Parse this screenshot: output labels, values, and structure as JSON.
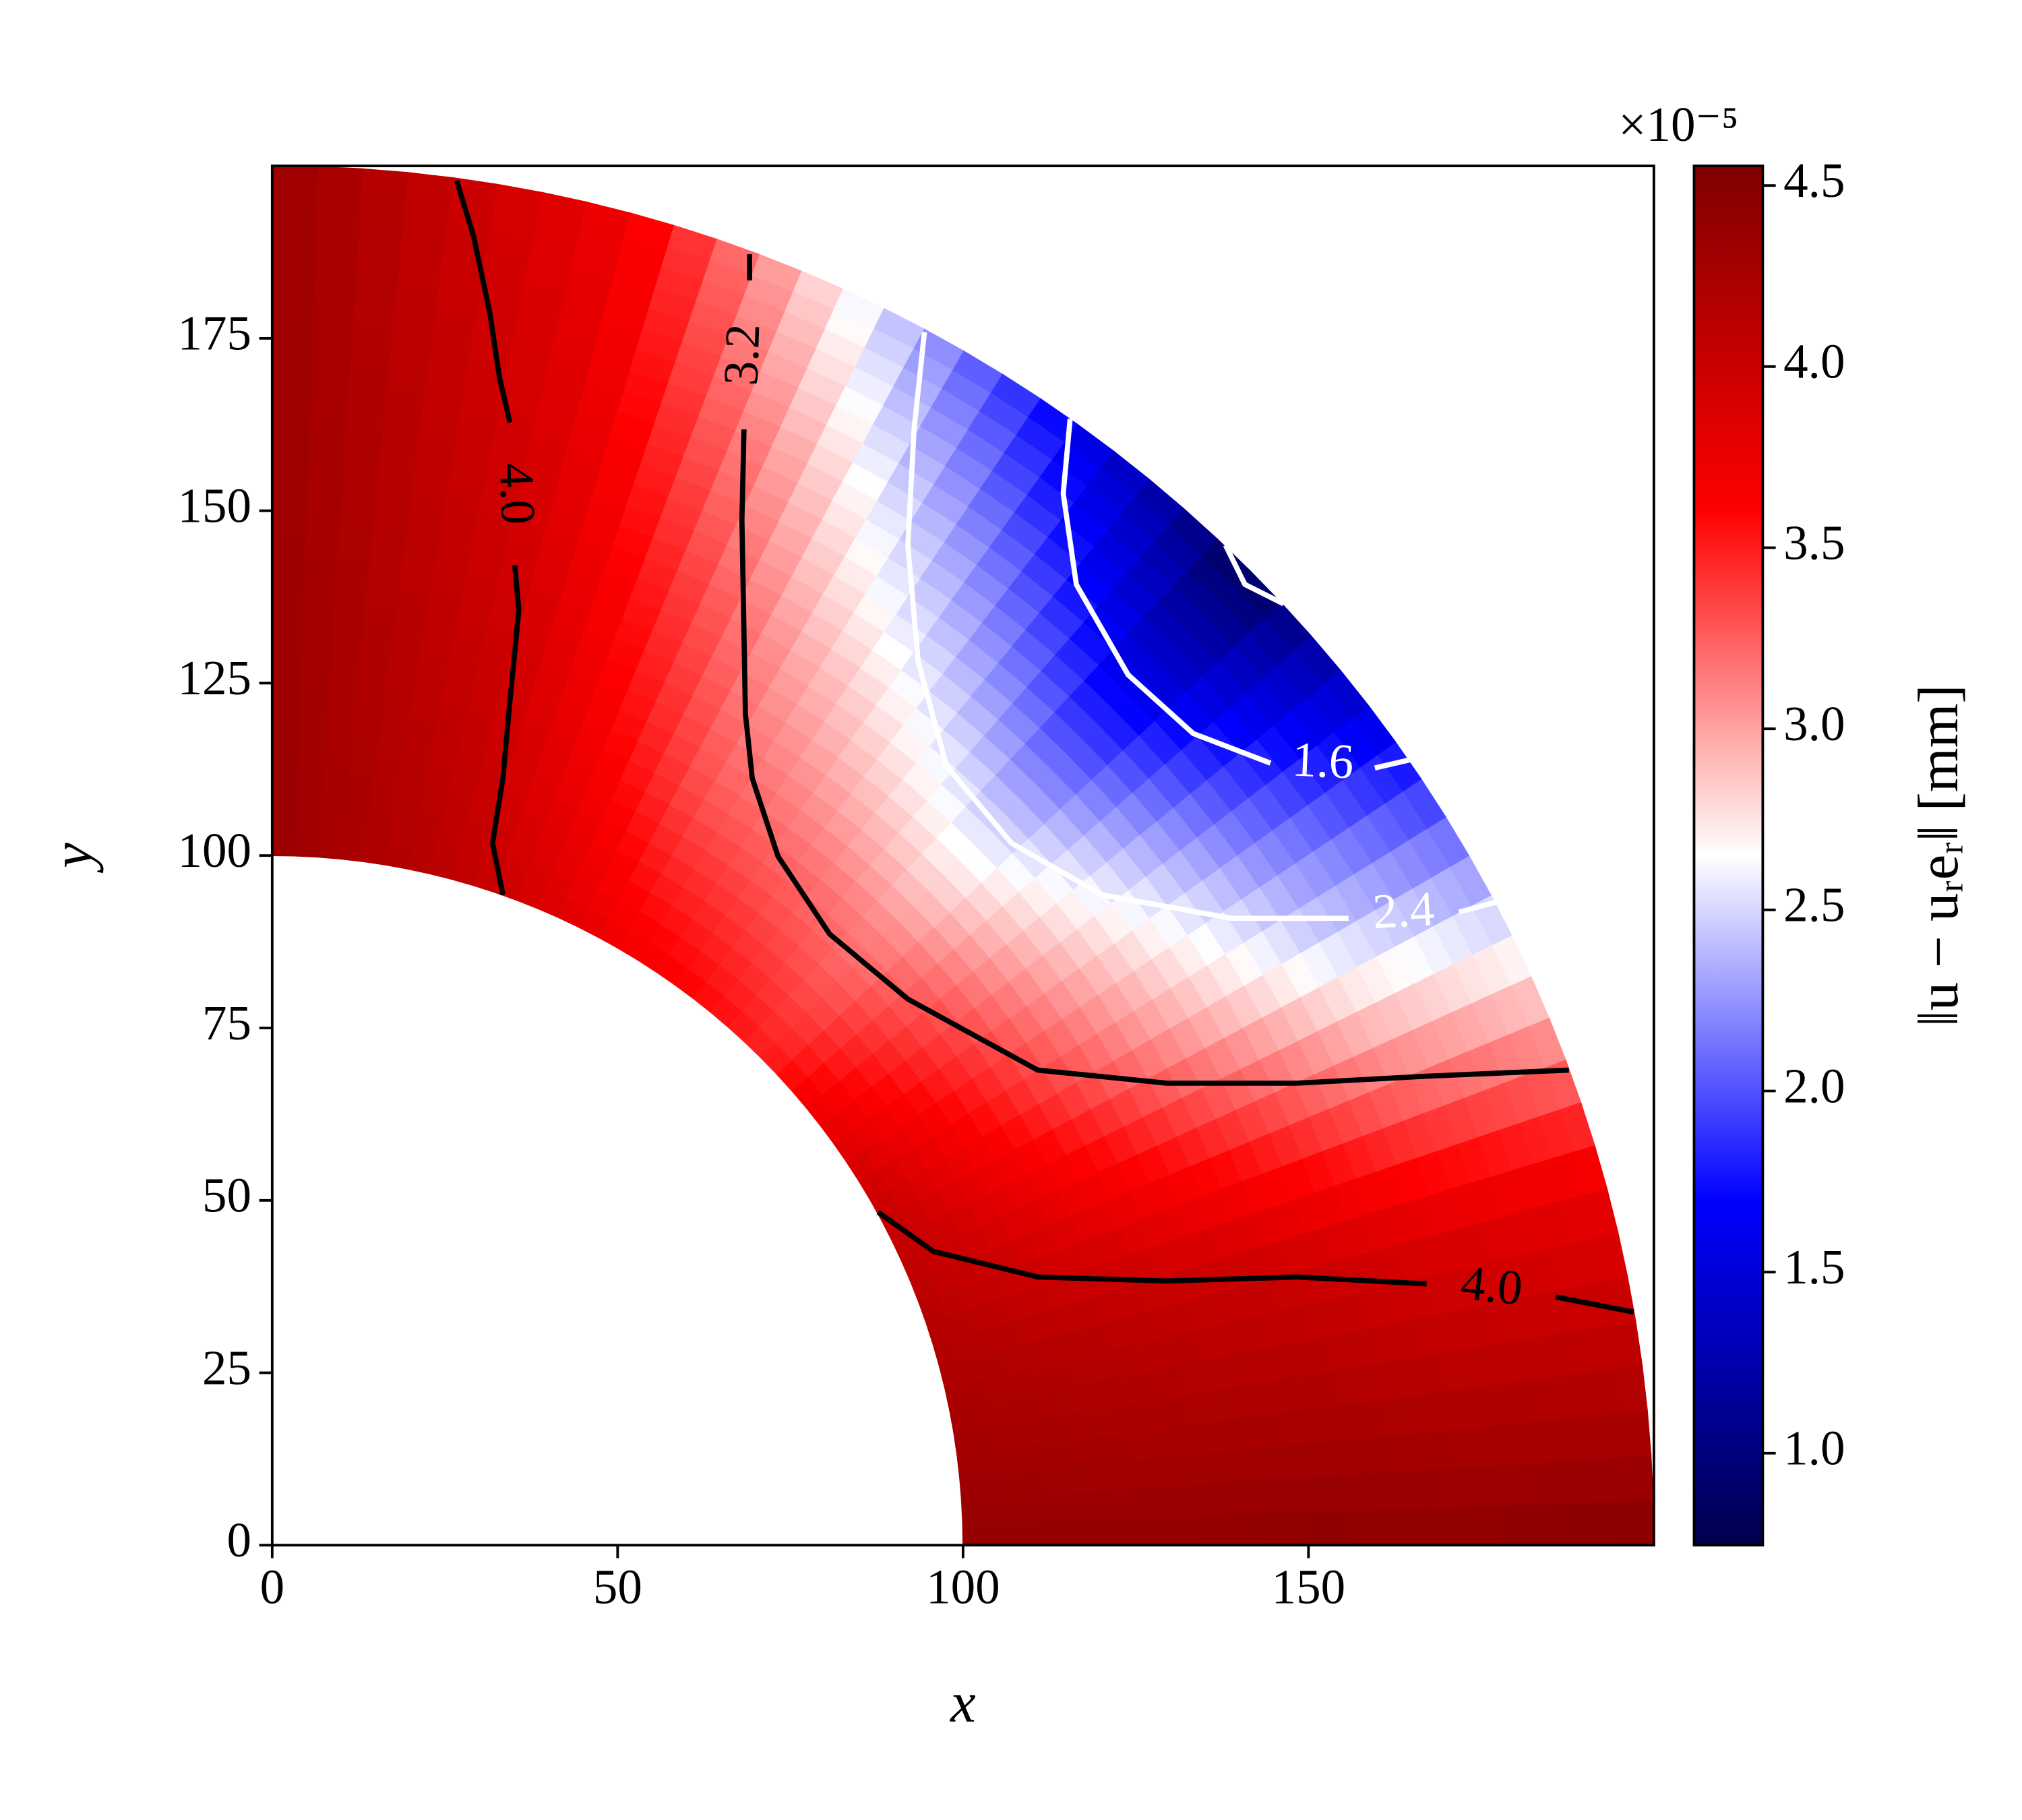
{
  "chart_data": {
    "type": "contour",
    "colormap": "seismic",
    "xlabel": "x",
    "ylabel": "y",
    "xlim": [
      0,
      200
    ],
    "ylim": [
      0,
      200
    ],
    "xticks": [
      0,
      50,
      100,
      150
    ],
    "yticks": [
      0,
      25,
      50,
      75,
      100,
      125,
      150,
      175
    ],
    "field": {
      "r": [
        100,
        125,
        150,
        175,
        200
      ],
      "theta": [
        0,
        15,
        30,
        45,
        60,
        75,
        90
      ],
      "z": [
        [
          4.4,
          4.2,
          4.0,
          3.5,
          3.7,
          4.1,
          4.35
        ],
        [
          4.4,
          4.1,
          3.5,
          3.1,
          3.3,
          4.0,
          4.35
        ],
        [
          4.45,
          4.0,
          3.0,
          2.4,
          3.0,
          3.9,
          4.35
        ],
        [
          4.45,
          3.85,
          2.5,
          1.6,
          2.6,
          3.8,
          4.35
        ],
        [
          4.5,
          3.75,
          2.2,
          0.8,
          2.1,
          3.7,
          4.35
        ]
      ]
    },
    "clim": [
      0.746,
      4.554
    ],
    "cticks": [
      {
        "value": 1,
        "label": "1.0"
      },
      1.5,
      {
        "value": 2,
        "label": "2.0"
      },
      2.5,
      {
        "value": 3,
        "label": "3.0"
      },
      3.5,
      {
        "value": 4,
        "label": "4.0"
      },
      4.5
    ],
    "colorbar_label": "‖u − uᵣeᵣ‖ [mm]",
    "colorbar_offset": "×10⁻⁵",
    "contours": [
      {
        "level": 4,
        "label": "4.0",
        "x": [
          26.7,
          29.1,
          31.5,
          32.9,
          34.4,
          null,
          35.1,
          35.7,
          34.4,
          33.4,
          31.9,
          33.4
        ],
        "y": [
          197.9,
          190.0,
          178.7,
          169.3,
          162.8,
          null,
          142.1,
          135.6,
          122.4,
          111.2,
          101.8,
          94.3
        ]
      },
      {
        "level": 3.2,
        "label": "3.2",
        "x": [
          69.1,
          69.1,
          null,
          68.3,
          68.0,
          68.5,
          69.5,
          73.2,
          80.7,
          92.0,
          110.8,
          129.5,
          148.3,
          167.1,
          187.7
        ],
        "y": [
          187.2,
          183.4,
          null,
          161.8,
          148.7,
          120.5,
          111.2,
          99.9,
          88.6,
          79.2,
          68.9,
          67.0,
          67.0,
          68.0,
          68.9
        ]
      },
      {
        "level": 2.4,
        "label": "2.4",
        "x": [
          94.4,
          92.9,
          92.0,
          93.5,
          97.6,
          107.0,
          120.1,
          138.9,
          155.8,
          null,
          171.8,
          177.4
        ],
        "y": [
          175.9,
          161.8,
          145.0,
          128.1,
          113.0,
          101.8,
          94.3,
          90.9,
          90.9,
          null,
          91.8,
          93.3
        ]
      },
      {
        "level": 1.6,
        "label": "1.6",
        "x": [
          115.5,
          114.5,
          116.4,
          123.9,
          133.3,
          144.5,
          null,
          159.6,
          165.2
        ],
        "y": [
          163.3,
          152.5,
          139.3,
          126.2,
          117.7,
          113.4,
          null,
          112.7,
          114.0
        ]
      },
      {
        "level": 0.8,
        "x": [
          138.0,
          140.8,
          146.4
        ],
        "y": [
          145.0,
          139.3,
          136.5
        ]
      },
      {
        "level": 4,
        "label": "4.0",
        "x": [
          87.7,
          95.7,
          110.8,
          129.5,
          148.3,
          167.1,
          null,
          185.8,
          197.1
        ],
        "y": [
          48.3,
          42.6,
          38.9,
          38.3,
          38.9,
          37.9,
          null,
          36.0,
          33.8
        ]
      }
    ]
  }
}
